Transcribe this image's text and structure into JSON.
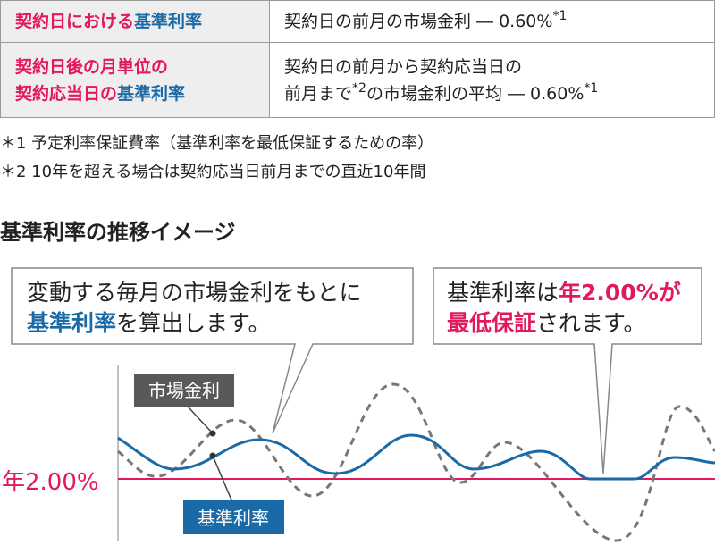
{
  "table": {
    "rows": [
      {
        "label": [
          {
            "text": "契約日における",
            "tone": "pink"
          },
          {
            "text": "基準利率",
            "tone": "blue"
          }
        ],
        "value": [
          [
            {
              "text": "契約日の前月の市場金利 ― 0.60%"
            },
            {
              "text": "*1",
              "sup": true
            }
          ]
        ]
      },
      {
        "label": [
          {
            "text": "契約日後の月単位の",
            "tone": "pink"
          },
          {
            "text": "契約応当日の",
            "tone": "pink",
            "br": true
          },
          {
            "text": "基準利率",
            "tone": "blue"
          }
        ],
        "value": [
          [
            {
              "text": "契約日の前月から契約応当日の"
            }
          ],
          [
            {
              "text": "前月まで"
            },
            {
              "text": "*2",
              "sup": true
            },
            {
              "text": "の市場金利の平均 ― 0.60%"
            },
            {
              "text": "*1",
              "sup": true
            }
          ]
        ]
      }
    ]
  },
  "notes": [
    "＊1 予定利率保証費率（基準利率を最低保証するための率）",
    "＊2 10年を超える場合は契約応当日前月までの直近10年間"
  ],
  "section_title": "基準利率の推移イメージ",
  "callouts": [
    [
      [
        {
          "text": "変動する毎月の市場金利をもとに"
        }
      ],
      [
        {
          "text": "基準利率",
          "tone": "blue"
        },
        {
          "text": "を算出します。"
        }
      ]
    ],
    [
      [
        {
          "text": "基準利率は"
        },
        {
          "text": "年2.00%が",
          "tone": "pink"
        }
      ],
      [
        {
          "text": "最低保証",
          "tone": "pink"
        },
        {
          "text": "されます。"
        }
      ]
    ]
  ],
  "labels": {
    "market_rate": "市場金利",
    "base_rate": "基準利率",
    "floor": "年2.00%"
  }
}
